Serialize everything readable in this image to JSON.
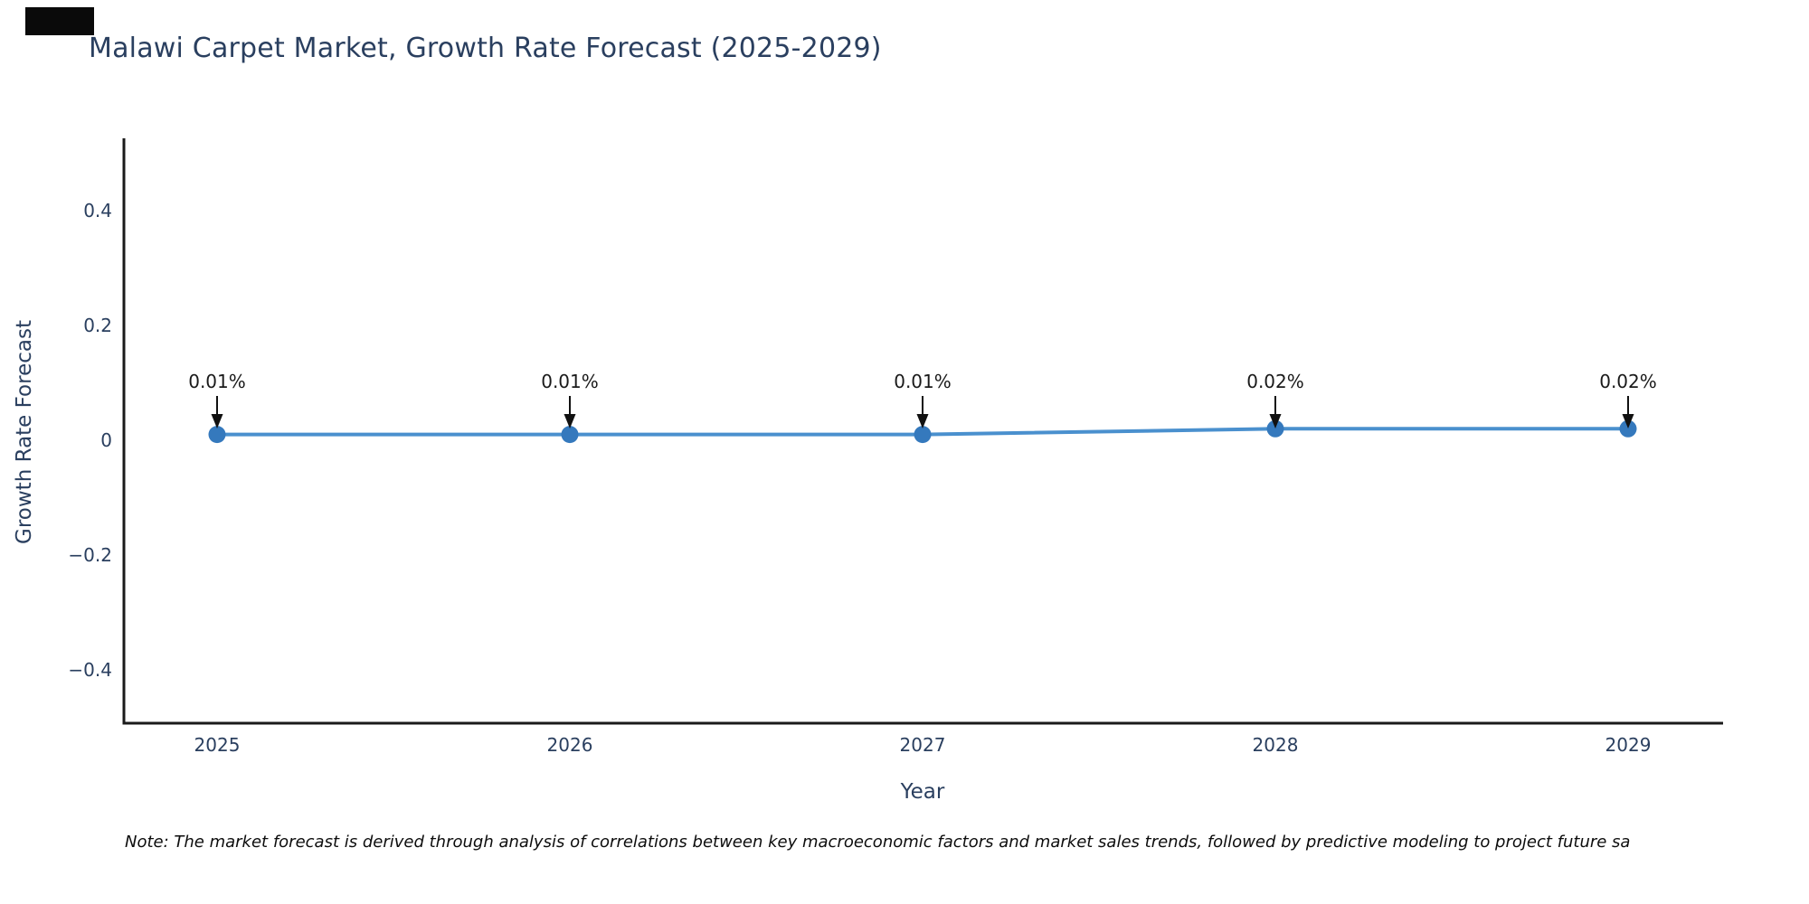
{
  "title": "Malawi Carpet Market, Growth Rate Forecast (2025-2029)",
  "note": "Note: The market forecast is derived through analysis of correlations between key macroeconomic factors and market sales trends, followed by predictive modeling to project future sa",
  "colors": {
    "line": "#4a90ce",
    "marker": "#3579bd",
    "axis": "#1a1a1a",
    "tick_text": "#2a3f5f",
    "annotation_text": "#1a1a1a",
    "arrow": "#111111"
  },
  "chart_data": {
    "type": "line",
    "title": "Malawi Carpet Market, Growth Rate Forecast (2025-2029)",
    "xlabel": "Year",
    "ylabel": "Growth Rate Forecast",
    "x": [
      "2025",
      "2026",
      "2027",
      "2028",
      "2029"
    ],
    "values": [
      0.01,
      0.01,
      0.01,
      0.02,
      0.02
    ],
    "point_labels": [
      "0.01%",
      "0.01%",
      "0.01%",
      "0.02%",
      "0.02%"
    ],
    "yticks": [
      0.4,
      0.2,
      0,
      -0.2,
      -0.4
    ],
    "ylim": [
      -0.5,
      0.52
    ],
    "grid": false,
    "legend": "none",
    "marker_style": "circle",
    "annotation_arrows": "down"
  }
}
